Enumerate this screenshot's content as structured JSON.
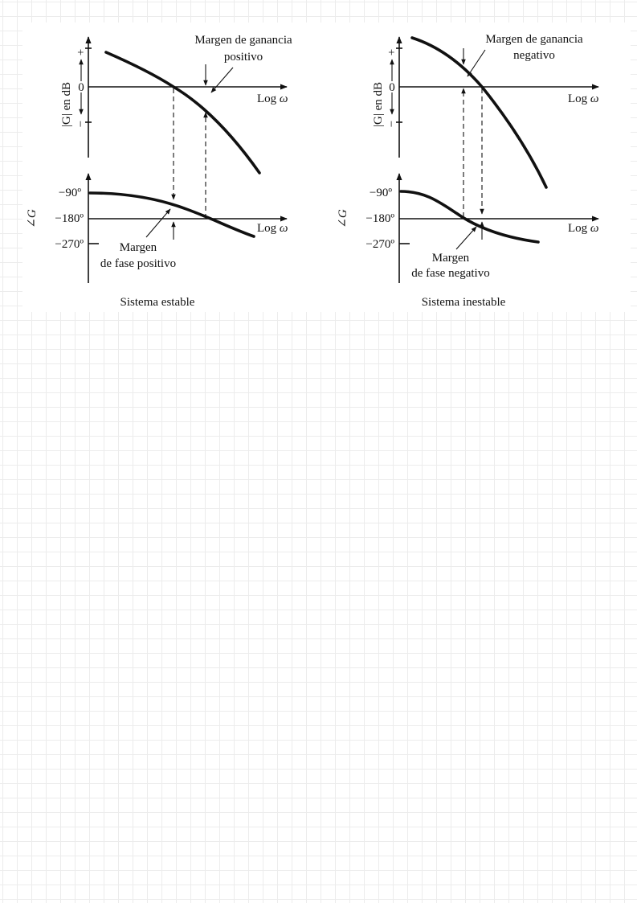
{
  "stable": {
    "gain_axis_label": "|G| en dB",
    "plus_sign": "+",
    "minus_sign": "−",
    "zero_label": "0",
    "x_axis_label_log": "Log",
    "x_axis_label_omega": "ω",
    "gain_margin_line1": "Margen de ganancia",
    "gain_margin_line2": "positivo",
    "phase_axis_label": "∠G",
    "tick_90": "−90º",
    "tick_180": "−180º",
    "tick_270": "−270º",
    "phase_margin_line1": "Margen",
    "phase_margin_line2": "de fase positivo",
    "caption": "Sistema estable"
  },
  "unstable": {
    "gain_axis_label": "|G| en dB",
    "plus_sign": "+",
    "minus_sign": "−",
    "zero_label": "0",
    "x_axis_label_log": "Log",
    "x_axis_label_omega": "ω",
    "gain_margin_line1": "Margen de ganancia",
    "gain_margin_line2": "negativo",
    "phase_axis_label": "∠G",
    "tick_90": "−90º",
    "tick_180": "−180º",
    "tick_270": "−270º",
    "phase_margin_line1": "Margen",
    "phase_margin_line2": "de fase negativo",
    "caption": "Sistema inestable"
  }
}
